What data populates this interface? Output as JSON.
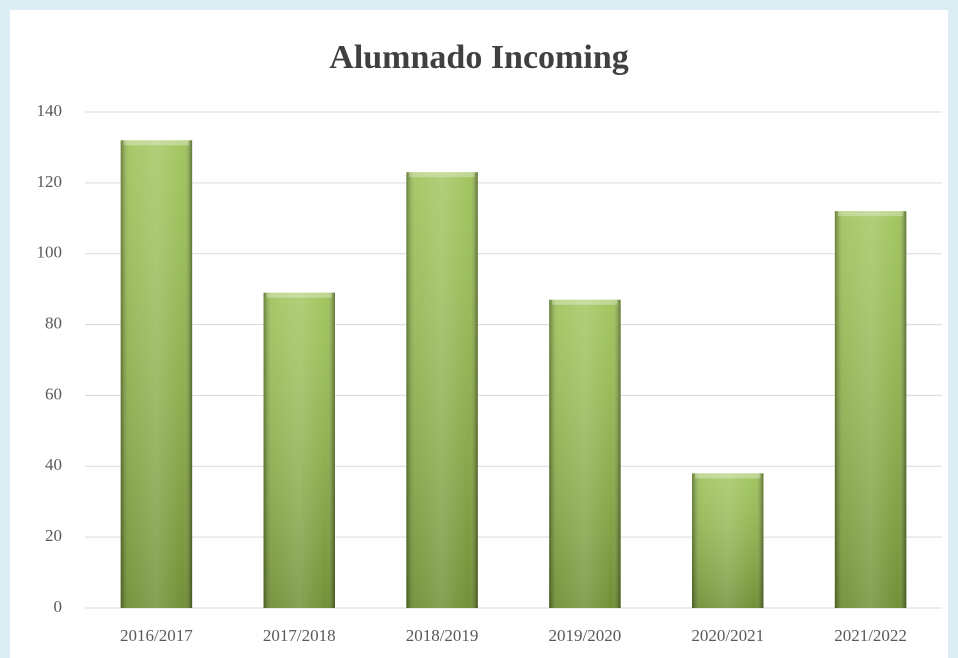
{
  "chart_data": {
    "type": "bar",
    "title": "Alumnado Incoming",
    "categories": [
      "2016/2017",
      "2017/2018",
      "2018/2019",
      "2019/2020",
      "2020/2021",
      "2021/2022"
    ],
    "values": [
      132,
      89,
      123,
      87,
      38,
      112
    ],
    "color": "#8cb83a",
    "ylim": [
      0,
      140
    ],
    "yticks": [
      0,
      20,
      40,
      60,
      80,
      100,
      120,
      140
    ],
    "grid": true
  }
}
